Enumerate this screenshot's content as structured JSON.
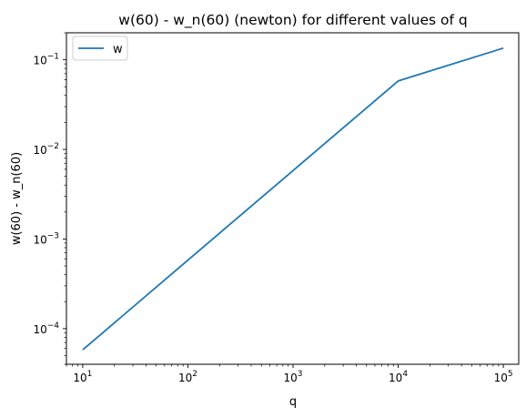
{
  "chart_data": {
    "type": "line",
    "title": "w(60) - w_n(60) (newton) for different values of q",
    "xlabel": "q",
    "ylabel": "w(60) - w_n(60)",
    "xscale": "log",
    "yscale": "log",
    "xlim": [
      7,
      140000
    ],
    "ylim": [
      4e-05,
      0.2
    ],
    "xticks": [
      {
        "value": 10,
        "mantissa": "10",
        "exponent": "1"
      },
      {
        "value": 100,
        "mantissa": "10",
        "exponent": "2"
      },
      {
        "value": 1000,
        "mantissa": "10",
        "exponent": "3"
      },
      {
        "value": 10000,
        "mantissa": "10",
        "exponent": "4"
      },
      {
        "value": 100000,
        "mantissa": "10",
        "exponent": "5"
      }
    ],
    "yticks": [
      {
        "value": 0.0001,
        "mantissa": "10",
        "exponent": "−4"
      },
      {
        "value": 0.001,
        "mantissa": "10",
        "exponent": "−3"
      },
      {
        "value": 0.01,
        "mantissa": "10",
        "exponent": "−2"
      },
      {
        "value": 0.1,
        "mantissa": "10",
        "exponent": "−1"
      }
    ],
    "grid": false,
    "legend_position": "top-left",
    "series": [
      {
        "name": "w",
        "color": "#1f77b4",
        "x": [
          10,
          100,
          1000,
          10000,
          100000
        ],
        "y": [
          5.8e-05,
          0.00058,
          0.0058,
          0.058,
          0.135
        ]
      }
    ]
  }
}
